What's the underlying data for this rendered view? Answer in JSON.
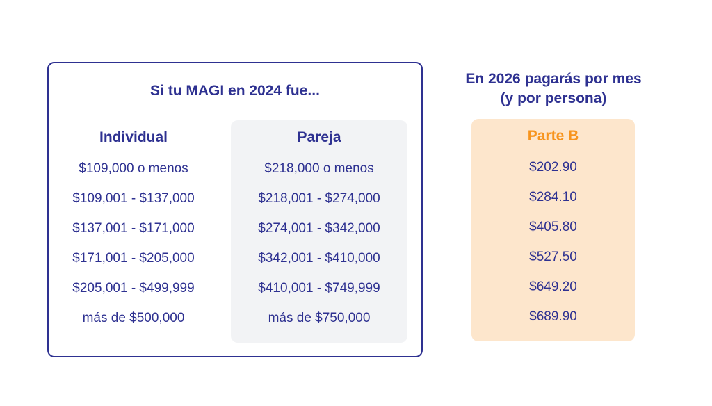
{
  "magi": {
    "title": "Si tu MAGI en 2024 fue...",
    "individual": {
      "header": "Individual",
      "rows": [
        "$109,000 o menos",
        "$109,001 - $137,000",
        "$137,001 - $171,000",
        "$171,001 - $205,000",
        "$205,001 - $499,999",
        "más de $500,000"
      ]
    },
    "pareja": {
      "header": "Pareja",
      "rows": [
        "$218,000 o menos",
        "$218,001 - $274,000",
        "$274,001 - $342,000",
        "$342,001 - $410,000",
        "$410,001 - $749,999",
        "más de $750,000"
      ]
    }
  },
  "payment": {
    "title_line1": "En 2026 pagarás por mes",
    "title_line2": "(y por persona)",
    "header": "Parte B",
    "rows": [
      "$202.90",
      "$284.10",
      "$405.80",
      "$527.50",
      "$649.20",
      "$689.90"
    ]
  },
  "colors": {
    "navy": "#2e3191",
    "orange": "#f7941d",
    "peach": "#fde6cc",
    "grey": "#f2f3f5"
  }
}
